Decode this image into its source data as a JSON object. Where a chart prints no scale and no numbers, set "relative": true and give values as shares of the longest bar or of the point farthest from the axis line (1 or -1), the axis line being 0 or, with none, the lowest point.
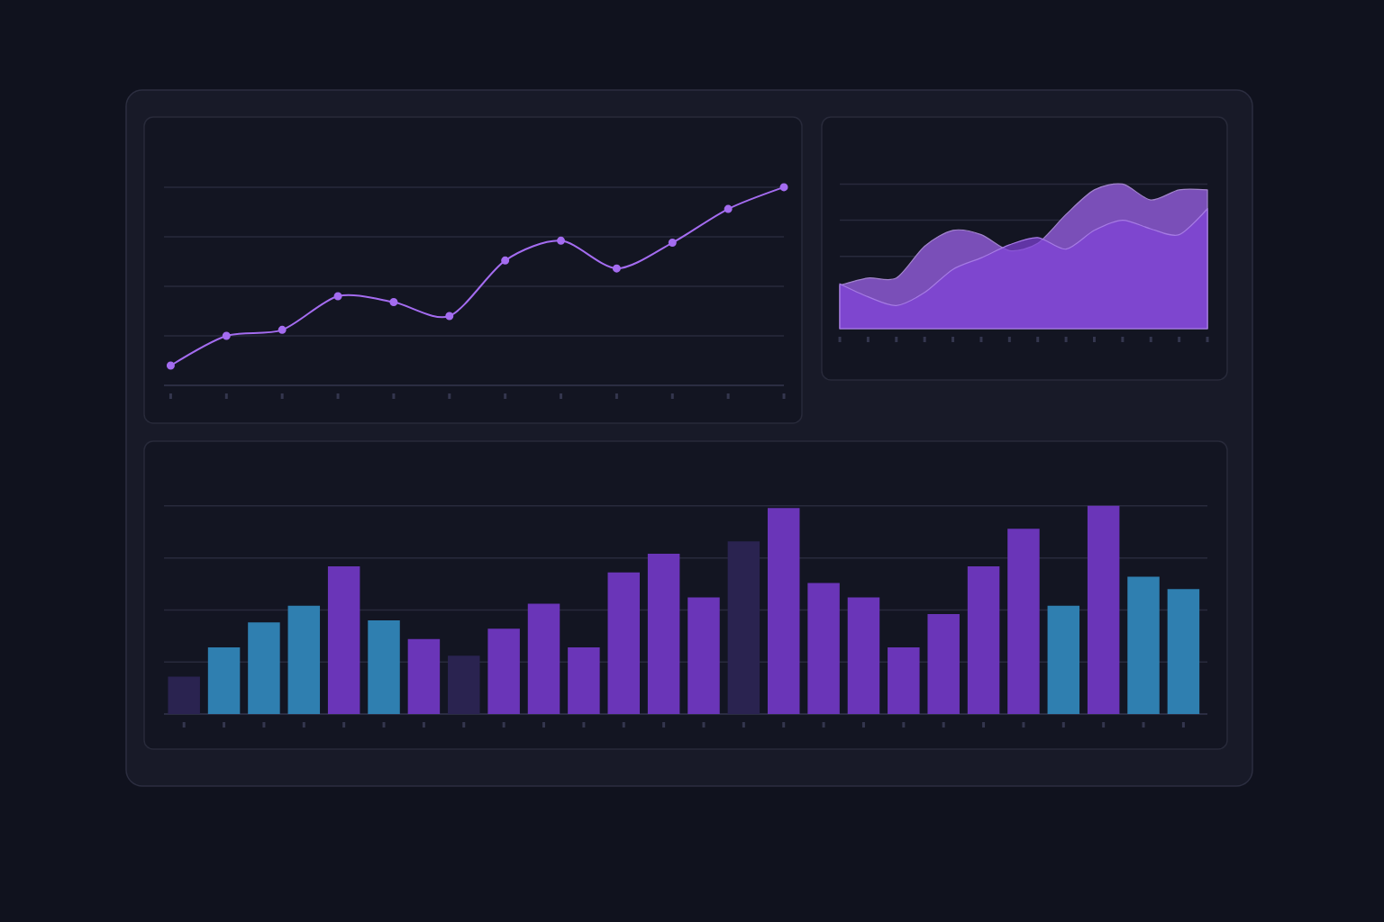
{
  "chart_data": [
    {
      "type": "line",
      "relative": true,
      "grid": "y",
      "tick_labels": false,
      "marker": "circle",
      "color": "#a46cf0",
      "categories": [
        null,
        null,
        null,
        null,
        null,
        null,
        null,
        null,
        null,
        null,
        null,
        null
      ],
      "values": [
        0.1,
        0.25,
        0.28,
        0.45,
        0.42,
        0.35,
        0.63,
        0.73,
        0.59,
        0.72,
        0.89,
        1.0
      ]
    },
    {
      "type": "area",
      "relative": true,
      "grid": "y",
      "tick_labels": false,
      "categories": [
        null,
        null,
        null,
        null,
        null,
        null,
        null,
        null,
        null,
        null,
        null,
        null,
        null,
        null
      ],
      "series": [
        {
          "color": "#7a4fb8",
          "values": [
            0.3,
            0.35,
            0.35,
            0.57,
            0.68,
            0.65,
            0.54,
            0.59,
            0.79,
            0.96,
            1.0,
            0.89,
            0.96,
            0.96
          ]
        },
        {
          "color": "#8043d8",
          "values": [
            0.31,
            0.22,
            0.16,
            0.25,
            0.41,
            0.49,
            0.58,
            0.63,
            0.55,
            0.68,
            0.75,
            0.69,
            0.65,
            0.83
          ]
        }
      ]
    },
    {
      "type": "bar",
      "relative": true,
      "grid": "y",
      "tick_labels": false,
      "categories": [
        null,
        null,
        null,
        null,
        null,
        null,
        null,
        null,
        null,
        null,
        null,
        null,
        null,
        null,
        null,
        null,
        null,
        null,
        null,
        null,
        null,
        null,
        null,
        null,
        null,
        null
      ],
      "values": [
        0.18,
        0.32,
        0.44,
        0.52,
        0.71,
        0.45,
        0.36,
        0.28,
        0.41,
        0.53,
        0.32,
        0.68,
        0.77,
        0.56,
        0.83,
        0.99,
        0.63,
        0.56,
        0.32,
        0.48,
        0.71,
        0.89,
        0.52,
        1.0,
        0.66,
        0.6
      ],
      "colors": [
        "#2a2350",
        "#2f7fb0",
        "#2f7fb0",
        "#2f7fb0",
        "#6a35b8",
        "#2f7fb0",
        "#6a35b8",
        "#2a2350",
        "#6a35b8",
        "#6a35b8",
        "#6a35b8",
        "#6a35b8",
        "#6a35b8",
        "#6a35b8",
        "#2a2350",
        "#6a35b8",
        "#6a35b8",
        "#6a35b8",
        "#6a35b8",
        "#6a35b8",
        "#6a35b8",
        "#6a35b8",
        "#2f7fb0",
        "#6a35b8",
        "#2f7fb0",
        "#2f7fb0"
      ]
    }
  ]
}
